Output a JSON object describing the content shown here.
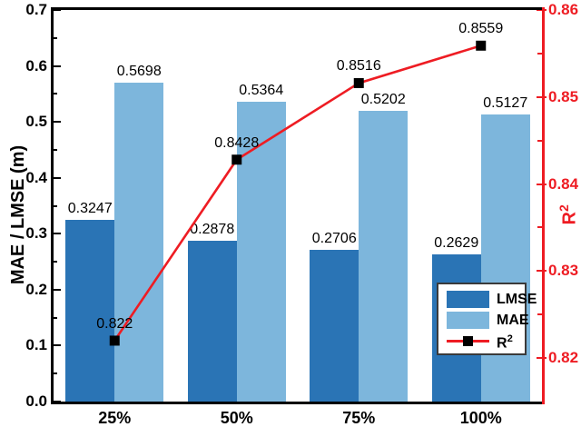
{
  "chart_data": {
    "type": "bar",
    "subtype": "grouped-bar-with-line-overlay",
    "categories": [
      "25%",
      "50%",
      "75%",
      "100%"
    ],
    "series": [
      {
        "name": "LMSE",
        "type": "bar",
        "axis": "left",
        "color": "#2a74b5",
        "values": [
          0.3247,
          0.2878,
          0.2706,
          0.2629
        ],
        "labels": [
          "0.3247",
          "0.2878",
          "0.2706",
          "0.2629"
        ]
      },
      {
        "name": "MAE",
        "type": "bar",
        "axis": "left",
        "color": "#7db6dc",
        "values": [
          0.5698,
          0.5364,
          0.5202,
          0.5127
        ],
        "labels": [
          "0.5698",
          "0.5364",
          "0.5202",
          "0.5127"
        ]
      },
      {
        "name": "R2",
        "type": "line",
        "axis": "right",
        "color": "#ee1c23",
        "marker": "black-square",
        "marker_color": "#000000",
        "values": [
          0.822,
          0.8428,
          0.8516,
          0.8559
        ],
        "labels": [
          "0.822",
          "0.8428",
          "0.8516",
          "0.8559"
        ]
      }
    ],
    "left_axis": {
      "title": "MAE / LMSE (m)",
      "min": 0,
      "max": 0.7,
      "major_tick_labels": [
        "0.0",
        "0.1",
        "0.2",
        "0.3",
        "0.4",
        "0.5",
        "0.6",
        "0.7"
      ],
      "major_step": 0.1,
      "minor_step": 0.05
    },
    "right_axis": {
      "title_base": "R",
      "title_sup": "2",
      "min": 0.815,
      "max": 0.86,
      "major_tick_labels": [
        "0.82",
        "0.83",
        "0.84",
        "0.85",
        "0.86"
      ],
      "major_step": 0.01,
      "minor_step": 0.005,
      "color": "#ee1c23"
    },
    "x_axis": {
      "tick_labels": [
        "25%",
        "50%",
        "75%",
        "100%"
      ]
    },
    "grid": false,
    "legend_position": "inside-bottom-right"
  },
  "legend": {
    "items": [
      {
        "label": "LMSE"
      },
      {
        "label": "MAE"
      },
      {
        "label_base": "R",
        "label_sup": "2"
      }
    ]
  }
}
